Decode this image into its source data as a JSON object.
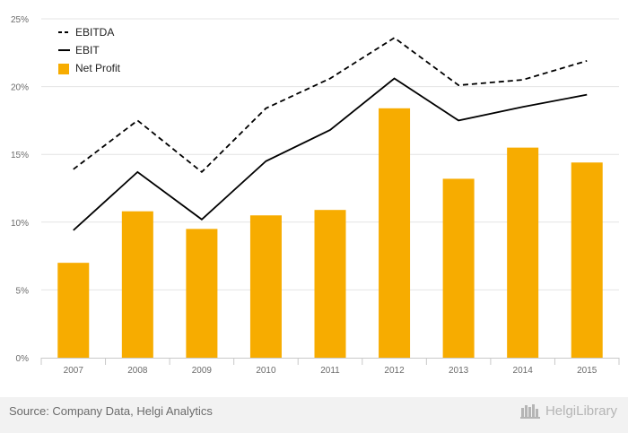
{
  "chart_data": {
    "type": "bar",
    "categories": [
      "2007",
      "2008",
      "2009",
      "2010",
      "2011",
      "2012",
      "2013",
      "2014",
      "2015"
    ],
    "series": [
      {
        "name": "EBITDA",
        "kind": "line",
        "style": "dashed",
        "color": "#000000",
        "values": [
          13.9,
          17.5,
          13.7,
          18.4,
          20.6,
          23.6,
          20.1,
          20.5,
          21.9
        ]
      },
      {
        "name": "EBIT",
        "kind": "line",
        "style": "solid",
        "color": "#000000",
        "values": [
          9.4,
          13.7,
          10.2,
          14.5,
          16.8,
          20.6,
          17.5,
          18.5,
          19.4
        ]
      },
      {
        "name": "Net Profit",
        "kind": "bar",
        "color": "#f7ac00",
        "values": [
          7.0,
          10.8,
          9.5,
          10.5,
          10.9,
          18.4,
          13.2,
          15.5,
          14.4
        ]
      }
    ],
    "y_ticks": [
      "0%",
      "5%",
      "10%",
      "15%",
      "20%",
      "25%"
    ],
    "ylim": [
      0,
      25
    ],
    "grid": true,
    "legend_position": "top-left"
  },
  "footer": {
    "source": "Source: Company Data, Helgi Analytics",
    "brand": "HelgiLibrary"
  }
}
